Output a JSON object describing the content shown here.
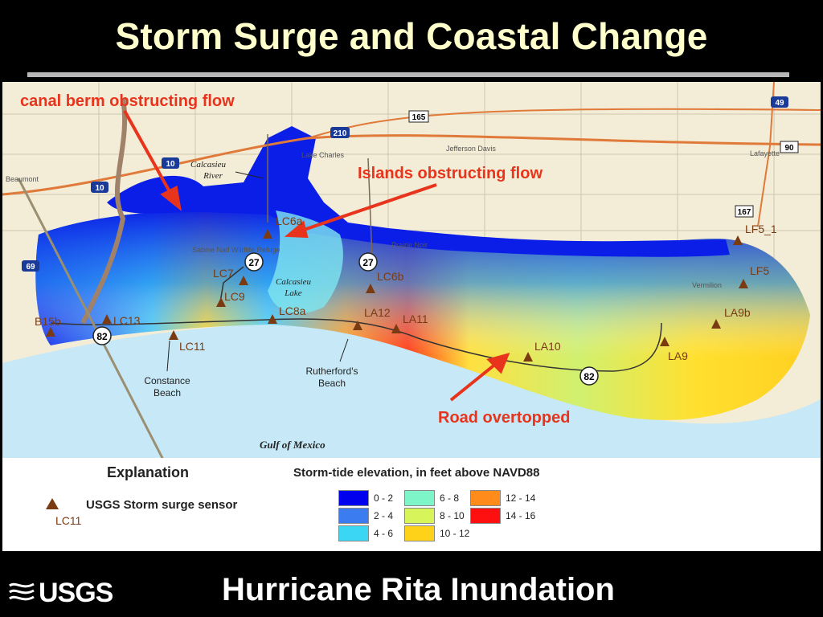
{
  "slide": {
    "title": "Storm Surge and Coastal Change",
    "footer_title": "Hurricane Rita Inundation",
    "logo_text": "USGS"
  },
  "annotations": {
    "canal_berm": "canal berm obstructing flow",
    "islands": "Islands obstructing flow",
    "road": "Road overtopped",
    "color": "#e8341c"
  },
  "places": {
    "calcasieu_river": [
      "Calcasieu",
      "River"
    ],
    "calcasieu_lake": [
      "Calcasieu",
      "Lake"
    ],
    "constance_beach": [
      "Constance",
      "Beach"
    ],
    "rutherfords_beach": [
      "Rutherford's",
      "Beach"
    ],
    "gulf": "Gulf of Mexico",
    "lake_charles": "Lake Charles",
    "beaumont": "Beaumont",
    "sabine": "Sabine Natl Wildlife Refuge",
    "prairie": "Prairie Noir",
    "jefferson_davis": "Jefferson Davis",
    "lafayette": "Lafayette",
    "vermilion": "Vermilion"
  },
  "roads": {
    "r27a": "27",
    "r27b": "27",
    "r82a": "82",
    "r82b": "82",
    "i10a": "10",
    "i10b": "10",
    "i210": "210",
    "r165": "165",
    "i49": "49",
    "r90": "90",
    "r167": "167",
    "r69": "69"
  },
  "sensors": [
    {
      "label": "LC6a"
    },
    {
      "label": "LC7"
    },
    {
      "label": "LC9"
    },
    {
      "label": "LC8a"
    },
    {
      "label": "LC6b"
    },
    {
      "label": "LA12"
    },
    {
      "label": "LA11"
    },
    {
      "label": "LA10"
    },
    {
      "label": "LA9"
    },
    {
      "label": "LA9b"
    },
    {
      "label": "LF5"
    },
    {
      "label": "LF5_1"
    },
    {
      "label": "B15b"
    },
    {
      "label": "LC13"
    },
    {
      "label": "LC11"
    }
  ],
  "legend": {
    "explanation": "Explanation",
    "sensor_label": "USGS Storm surge sensor",
    "sensor_code": "LC11",
    "heading": "Storm-tide elevation, in feet above NAVD88",
    "classes": [
      {
        "range": "0 - 2",
        "color": "#0000ee"
      },
      {
        "range": "2 - 4",
        "color": "#3b7cf0"
      },
      {
        "range": "4 - 6",
        "color": "#3cd6f5"
      },
      {
        "range": "6 - 8",
        "color": "#7ef5c8"
      },
      {
        "range": "8 - 10",
        "color": "#d7f55a"
      },
      {
        "range": "10 - 12",
        "color": "#ffd21a"
      },
      {
        "range": "12 - 14",
        "color": "#ff8c1a"
      },
      {
        "range": "14 - 16",
        "color": "#ff1010"
      }
    ]
  },
  "colors": {
    "land": "#f3ecd6",
    "water": "#c6e8f7",
    "sensor": "#7a3b12",
    "title_text": "#ffffcc"
  }
}
